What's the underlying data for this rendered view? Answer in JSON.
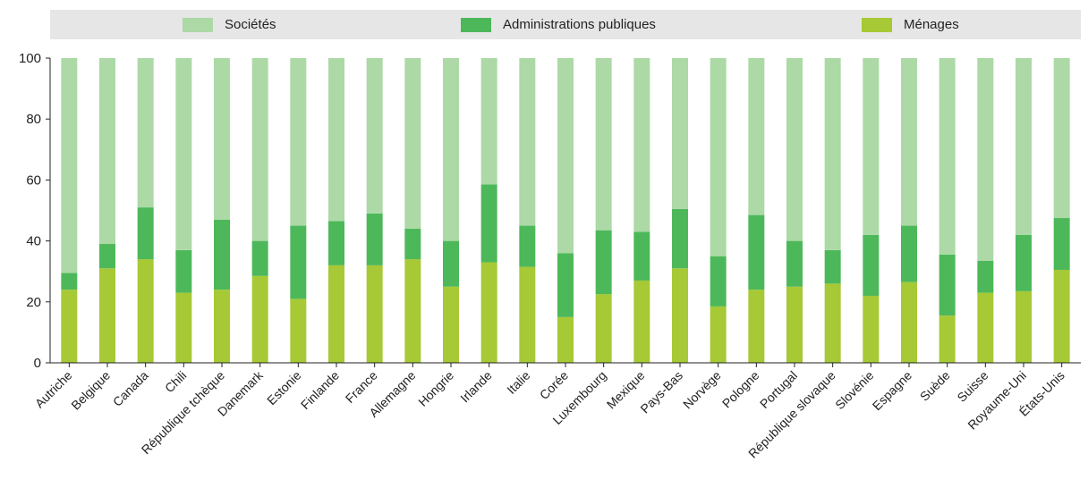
{
  "chart_data": {
    "type": "bar",
    "stacked": true,
    "title": "",
    "xlabel": "",
    "ylabel": "",
    "ylim": [
      0,
      100
    ],
    "yticks": [
      0,
      20,
      40,
      60,
      80,
      100
    ],
    "grid": false,
    "legend_position": "top",
    "categories": [
      "Autriche",
      "Belgique",
      "Canada",
      "Chili",
      "République tchèque",
      "Danemark",
      "Estonie",
      "Finlande",
      "France",
      "Allemagne",
      "Hongrie",
      "Irlande",
      "Italie",
      "Corée",
      "Luxembourg",
      "Mexique",
      "Pays-Bas",
      "Norvège",
      "Pologne",
      "Portugal",
      "République slovaque",
      "Slovénie",
      "Espagne",
      "Suède",
      "Suisse",
      "Royaume-Uni",
      "États-Unis"
    ],
    "series": [
      {
        "name": "Ménages",
        "color": "#a6c935",
        "values": [
          24,
          31,
          34,
          23,
          24,
          28.5,
          21,
          32,
          32,
          34,
          25,
          33,
          31.5,
          15,
          22.5,
          27,
          31,
          18.5,
          24,
          25,
          26,
          22,
          26.5,
          15.5,
          23,
          23.5,
          30.5
        ]
      },
      {
        "name": "Administrations publiques",
        "color": "#4db85a",
        "values": [
          5.5,
          8,
          17,
          14,
          23,
          11.5,
          24,
          14.5,
          17,
          10,
          15,
          25.5,
          13.5,
          21,
          21,
          16,
          19.5,
          16.5,
          24.5,
          15,
          11,
          20,
          18.5,
          20,
          10.5,
          18.5,
          17
        ]
      },
      {
        "name": "Sociétés",
        "color": "#acd9a6",
        "values": [
          70.5,
          61,
          49,
          63,
          53,
          60,
          55,
          53.5,
          51,
          56,
          60,
          41.5,
          55,
          64,
          56.5,
          57,
          49.5,
          65,
          51.5,
          60,
          63,
          58,
          55,
          64.5,
          66.5,
          58,
          52.5
        ]
      }
    ]
  },
  "legend": {
    "items": [
      {
        "label": "Sociétés",
        "color": "#acd9a6"
      },
      {
        "label": "Administrations publiques",
        "color": "#4db85a"
      },
      {
        "label": "Ménages",
        "color": "#a6c935"
      }
    ]
  }
}
